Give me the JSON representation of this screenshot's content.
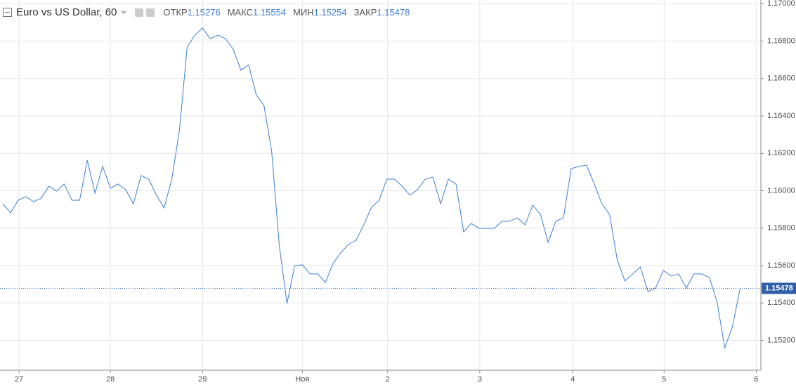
{
  "header": {
    "title": "Euro vs US Dollar, 60",
    "open_label": "ОТКР",
    "open": 1.15276,
    "high_label": "МАКС",
    "high": 1.15554,
    "low_label": "МИН",
    "low": 1.15254,
    "close_label": "ЗАКР",
    "close": 1.15478
  },
  "chart_data": {
    "type": "line",
    "color": "#3d7fd6",
    "grid": true,
    "values": [
      1.1593,
      1.15882,
      1.15949,
      1.15968,
      1.15942,
      1.1596,
      1.16024,
      1.15998,
      1.16036,
      1.15949,
      1.15949,
      1.16163,
      1.15987,
      1.1613,
      1.16013,
      1.16036,
      1.16006,
      1.1593,
      1.16081,
      1.16062,
      1.15976,
      1.15908,
      1.16062,
      1.16325,
      1.16768,
      1.16832,
      1.1687,
      1.16813,
      1.16832,
      1.16813,
      1.16757,
      1.16644,
      1.16674,
      1.16513,
      1.16456,
      1.16212,
      1.15705,
      1.15397,
      1.156,
      1.15604,
      1.15555,
      1.15555,
      1.1551,
      1.15611,
      1.15668,
      1.15713,
      1.15735,
      1.15818,
      1.15912,
      1.15949,
      1.16062,
      1.16062,
      1.16024,
      1.15976,
      1.16006,
      1.16062,
      1.16073,
      1.1593,
      1.16062,
      1.16036,
      1.1578,
      1.15825,
      1.15799,
      1.15799,
      1.15799,
      1.15837,
      1.15837,
      1.15855,
      1.15818,
      1.15923,
      1.15874,
      1.15724,
      1.15837,
      1.15855,
      1.16118,
      1.1613,
      1.16137,
      1.16036,
      1.1593,
      1.15874,
      1.1563,
      1.15517,
      1.15555,
      1.15592,
      1.15461,
      1.1548,
      1.15574,
      1.15544,
      1.15555,
      1.1548,
      1.15555,
      1.15555,
      1.15536,
      1.15405,
      1.1516,
      1.15273,
      1.15478
    ],
    "ylim": [
      1.1504,
      1.1702
    ],
    "yticks": [
      {
        "value": 1.152,
        "label": "1.15200"
      },
      {
        "value": 1.154,
        "label": "1.15400"
      },
      {
        "value": 1.156,
        "label": "1.15600"
      },
      {
        "value": 1.158,
        "label": "1.15800"
      },
      {
        "value": 1.16,
        "label": "1.16000"
      },
      {
        "value": 1.162,
        "label": "1.16200"
      },
      {
        "value": 1.164,
        "label": "1.16400"
      },
      {
        "value": 1.166,
        "label": "1.16600"
      },
      {
        "value": 1.168,
        "label": "1.16800"
      },
      {
        "value": 1.17,
        "label": "1.17000"
      }
    ],
    "xlim": [
      -0.37,
      98.7
    ],
    "xticks": [
      {
        "value": 2.1,
        "label": "27"
      },
      {
        "value": 14,
        "label": "28"
      },
      {
        "value": 26,
        "label": "29"
      },
      {
        "value": 39,
        "label": "Ноя"
      },
      {
        "value": 50.1,
        "label": "2"
      },
      {
        "value": 62.1,
        "label": "3"
      },
      {
        "value": 74.2,
        "label": "4"
      },
      {
        "value": 86.1,
        "label": "5"
      },
      {
        "value": 98.1,
        "label": "6"
      }
    ]
  }
}
